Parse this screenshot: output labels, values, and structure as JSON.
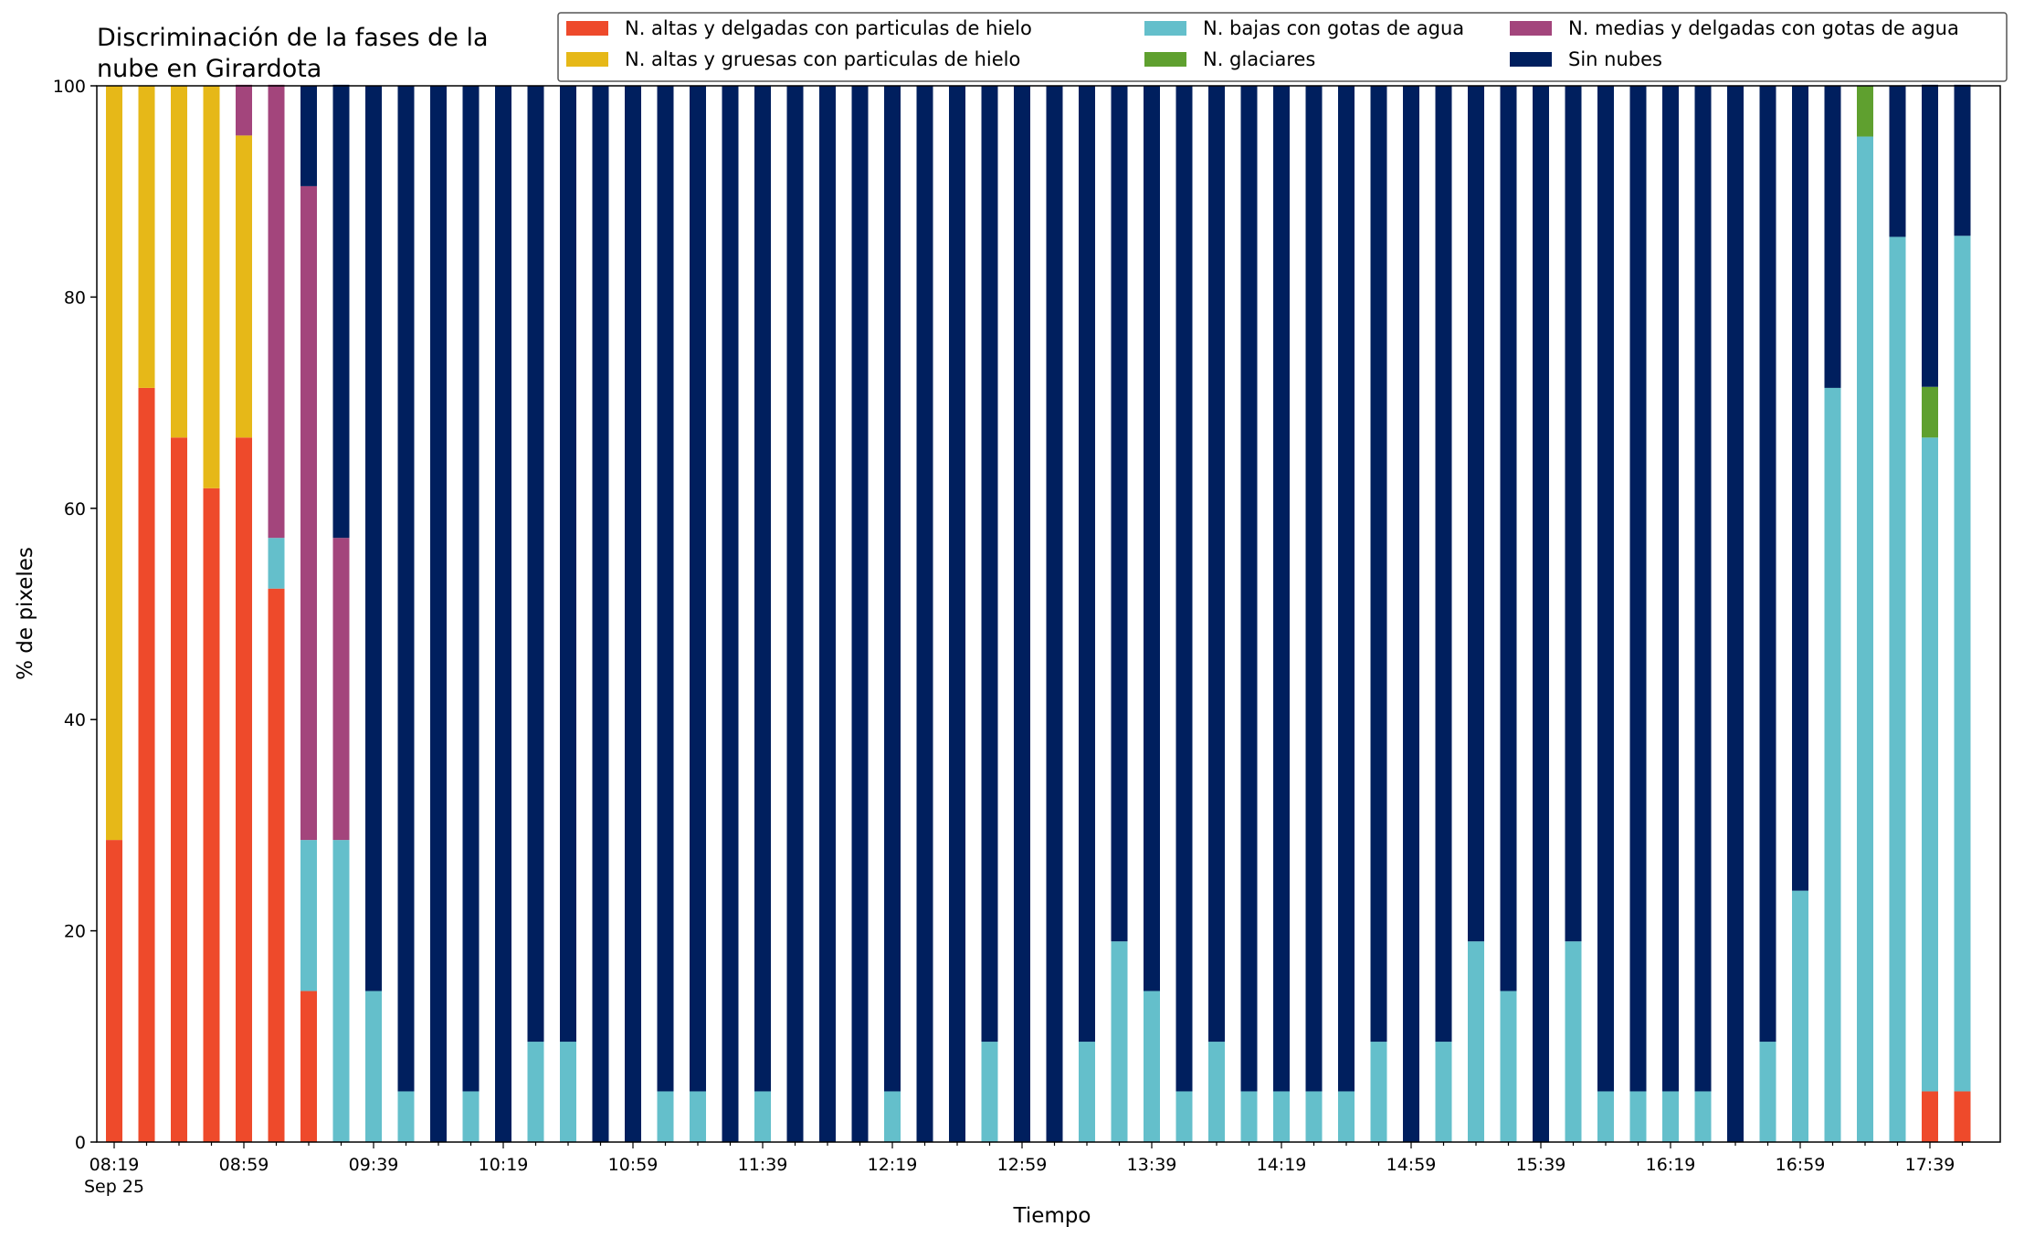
{
  "chart_data": {
    "type": "bar",
    "stacked": true,
    "title": [
      "Discriminación de la fases de la",
      "nube en Girardota"
    ],
    "xlabel": "Tiempo",
    "ylabel": "% de pixeles",
    "ylim": [
      0,
      100
    ],
    "yticks": [
      "0",
      "20",
      "40",
      "60",
      "80",
      "100"
    ],
    "xtick_labels": [
      {
        "label": "08:19",
        "sub": "Sep 25"
      },
      {
        "label": "08:59"
      },
      {
        "label": "09:39"
      },
      {
        "label": "10:19"
      },
      {
        "label": "10:59"
      },
      {
        "label": "11:39"
      },
      {
        "label": "12:19"
      },
      {
        "label": "12:59"
      },
      {
        "label": "13:39"
      },
      {
        "label": "14:19"
      },
      {
        "label": "14:59"
      },
      {
        "label": "15:39"
      },
      {
        "label": "16:19"
      },
      {
        "label": "16:59"
      },
      {
        "label": "17:39"
      }
    ],
    "categories": [
      "08:19",
      "08:29",
      "08:39",
      "08:49",
      "08:59",
      "09:09",
      "09:19",
      "09:29",
      "09:39",
      "09:49",
      "09:59",
      "10:09",
      "10:19",
      "10:29",
      "10:39",
      "10:49",
      "10:59",
      "11:09",
      "11:19",
      "11:29",
      "11:39",
      "11:49",
      "11:59",
      "12:09",
      "12:19",
      "12:29",
      "12:39",
      "12:49",
      "12:59",
      "13:09",
      "13:19",
      "13:29",
      "13:39",
      "13:49",
      "13:59",
      "14:09",
      "14:19",
      "14:29",
      "14:39",
      "14:49",
      "14:59",
      "15:09",
      "15:19",
      "15:29",
      "15:39",
      "15:49",
      "15:59",
      "16:09",
      "16:19",
      "16:29",
      "16:39",
      "16:49",
      "16:59",
      "17:09",
      "17:19",
      "17:29",
      "17:39",
      "17:49"
    ],
    "grid": false,
    "legend_position": "top-right",
    "legend_columns": 3,
    "series": [
      {
        "name": "N. altas y delgadas con particulas de hielo",
        "color": "#ee4a2b",
        "values": [
          28.6,
          71.4,
          66.7,
          61.9,
          66.7,
          52.4,
          14.3,
          0,
          0,
          0,
          0,
          0,
          0,
          0,
          0,
          0,
          0,
          0,
          0,
          0,
          0,
          0,
          0,
          0,
          0,
          0,
          0,
          0,
          0,
          0,
          0,
          0,
          0,
          0,
          0,
          0,
          0,
          0,
          0,
          0,
          0,
          0,
          0,
          0,
          0,
          0,
          0,
          0,
          0,
          0,
          0,
          0,
          0,
          0,
          0,
          0,
          4.8,
          4.8
        ]
      },
      {
        "name": "N. altas y gruesas con particulas de hielo",
        "color": "#e6b818",
        "values": [
          71.4,
          28.6,
          33.3,
          38.1,
          28.6,
          0,
          0,
          0,
          0,
          0,
          0,
          0,
          0,
          0,
          0,
          0,
          0,
          0,
          0,
          0,
          0,
          0,
          0,
          0,
          0,
          0,
          0,
          0,
          0,
          0,
          0,
          0,
          0,
          0,
          0,
          0,
          0,
          0,
          0,
          0,
          0,
          0,
          0,
          0,
          0,
          0,
          0,
          0,
          0,
          0,
          0,
          0,
          0,
          0,
          0,
          0,
          0,
          0
        ]
      },
      {
        "name": "N. bajas con gotas de agua",
        "color": "#64bfcb",
        "values": [
          0,
          0,
          0,
          0,
          0,
          4.8,
          14.3,
          28.6,
          14.3,
          4.8,
          0,
          4.8,
          0,
          9.5,
          9.5,
          0,
          0,
          4.8,
          4.8,
          0,
          4.8,
          0,
          0,
          0,
          4.8,
          0,
          0,
          9.5,
          0,
          0,
          9.5,
          19.0,
          14.3,
          4.8,
          9.5,
          4.8,
          4.8,
          4.8,
          4.8,
          9.5,
          0,
          9.5,
          19.0,
          14.3,
          0,
          19.0,
          4.8,
          4.8,
          4.8,
          4.8,
          0,
          9.5,
          23.8,
          71.4,
          95.2,
          85.7,
          61.9,
          81.0
        ]
      },
      {
        "name": "N. glaciares",
        "color": "#5fa02f",
        "values": [
          0,
          0,
          0,
          0,
          0,
          0,
          0,
          0,
          0,
          0,
          0,
          0,
          0,
          0,
          0,
          0,
          0,
          0,
          0,
          0,
          0,
          0,
          0,
          0,
          0,
          0,
          0,
          0,
          0,
          0,
          0,
          0,
          0,
          0,
          0,
          0,
          0,
          0,
          0,
          0,
          0,
          0,
          0,
          0,
          0,
          0,
          0,
          0,
          0,
          0,
          0,
          0,
          0,
          0,
          4.8,
          0,
          4.8,
          0
        ]
      },
      {
        "name": "N. medias y delgadas con gotas de agua",
        "color": "#a3457c",
        "values": [
          0,
          0,
          0,
          0,
          4.8,
          42.9,
          61.9,
          28.6,
          0,
          0,
          0,
          0,
          0,
          0,
          0,
          0,
          0,
          0,
          0,
          0,
          0,
          0,
          0,
          0,
          0,
          0,
          0,
          0,
          0,
          0,
          0,
          0,
          0,
          0,
          0,
          0,
          0,
          0,
          0,
          0,
          0,
          0,
          0,
          0,
          0,
          0,
          0,
          0,
          0,
          0,
          0,
          0,
          0,
          0,
          0,
          0,
          0,
          0
        ]
      },
      {
        "name": "Sin nubes",
        "color": "#001f5e",
        "values": [
          0,
          0,
          0,
          0,
          0,
          0,
          9.5,
          42.9,
          85.7,
          95.2,
          100,
          95.2,
          100,
          90.5,
          90.5,
          100,
          100,
          95.2,
          95.2,
          100,
          95.2,
          100,
          100,
          100,
          95.2,
          100,
          100,
          90.5,
          100,
          100,
          90.5,
          81.0,
          85.7,
          95.2,
          90.5,
          95.2,
          95.2,
          95.2,
          95.2,
          90.5,
          100,
          90.5,
          81.0,
          85.7,
          100,
          81.0,
          95.2,
          95.2,
          95.2,
          95.2,
          100,
          90.5,
          76.2,
          28.6,
          0,
          14.3,
          28.6,
          14.3
        ]
      }
    ]
  }
}
